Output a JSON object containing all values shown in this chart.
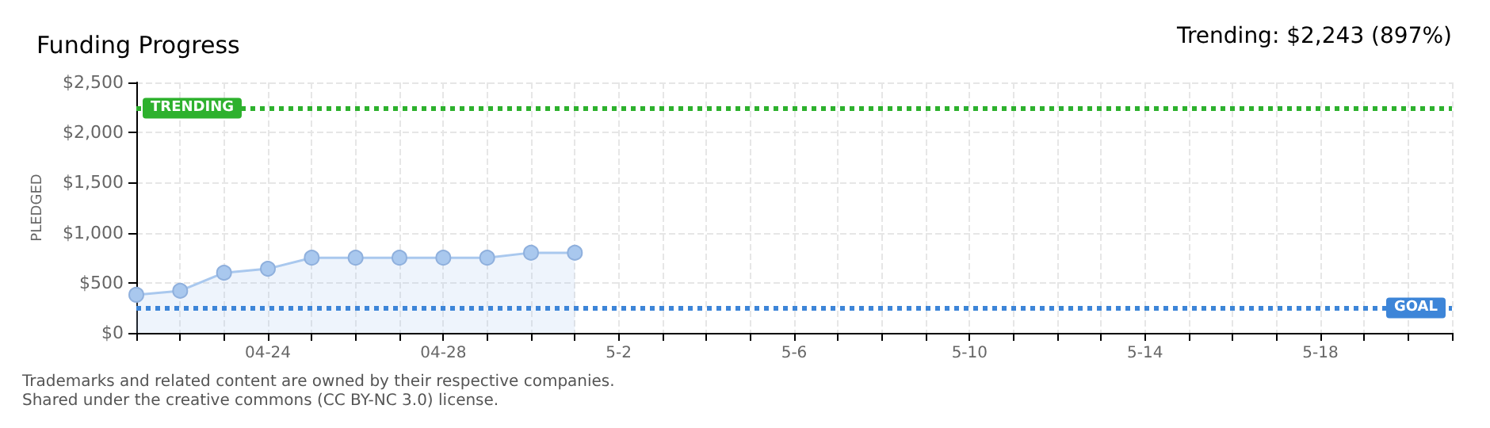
{
  "chart_data": {
    "type": "area",
    "title": "Funding Progress",
    "ylabel": "PLEDGED",
    "annotations": [
      "Trending: $2,243 (897%)",
      "Trademarks and related content are owned by their respective companies.",
      "Shared under the creative commons (CC BY-NC 3.0) license."
    ],
    "x": [
      "--04-21",
      "--04-22",
      "--04-23",
      "--04-24",
      "--04-25",
      "--04-26",
      "--04-27",
      "--04-28",
      "--04-29",
      "--04-30",
      "--05-01"
    ],
    "series": [
      {
        "color": "#a9c8ee",
        "values": [
          380,
          420,
          600,
          640,
          750,
          750,
          750,
          750,
          750,
          800,
          800
        ]
      }
    ],
    "xlim": [
      "--04-21",
      "--05-21"
    ],
    "xticks": [
      {
        "value": "--04-21",
        "label": null
      },
      {
        "value": "--04-22",
        "label": null
      },
      {
        "value": "--04-23",
        "label": null
      },
      {
        "value": "--04-24",
        "label": "04-24"
      },
      {
        "value": "--04-25",
        "label": null
      },
      {
        "value": "--04-26",
        "label": null
      },
      {
        "value": "--04-27",
        "label": null
      },
      {
        "value": "--04-28",
        "label": "04-28"
      },
      {
        "value": "--04-29",
        "label": null
      },
      {
        "value": "--04-30",
        "label": null
      },
      {
        "value": "--05-01",
        "label": null
      },
      {
        "value": "--05-02",
        "label": "5-2"
      },
      {
        "value": "--05-03",
        "label": null
      },
      {
        "value": "--05-04",
        "label": null
      },
      {
        "value": "--05-05",
        "label": null
      },
      {
        "value": "--05-06",
        "label": "5-6"
      },
      {
        "value": "--05-07",
        "label": null
      },
      {
        "value": "--05-08",
        "label": null
      },
      {
        "value": "--05-09",
        "label": null
      },
      {
        "value": "--05-10",
        "label": "5-10"
      },
      {
        "value": "--05-11",
        "label": null
      },
      {
        "value": "--05-12",
        "label": null
      },
      {
        "value": "--05-13",
        "label": null
      },
      {
        "value": "--05-14",
        "label": "5-14"
      },
      {
        "value": "--05-15",
        "label": null
      },
      {
        "value": "--05-16",
        "label": null
      },
      {
        "value": "--05-17",
        "label": null
      },
      {
        "value": "--05-18",
        "label": "5-18"
      },
      {
        "value": "--05-19",
        "label": null
      },
      {
        "value": "--05-20",
        "label": null
      },
      {
        "value": "--05-21",
        "label": null
      }
    ],
    "ylim": [
      0,
      2500
    ],
    "yticks": [
      {
        "value": 0,
        "label": "$0"
      },
      {
        "value": 500,
        "label": "$500"
      },
      {
        "value": 1000,
        "label": "$1,000"
      },
      {
        "value": 1500,
        "label": "$1,500"
      },
      {
        "value": 2000,
        "label": "$2,000"
      },
      {
        "value": 2500,
        "label": "$2,500"
      }
    ],
    "grid": true,
    "marker": "circle",
    "line_style": "solid",
    "ref_lines": [
      {
        "axis": "y",
        "value": 2243,
        "label": "TRENDING",
        "color": "#2db12d",
        "line_style": "dotted"
      },
      {
        "axis": "y",
        "value": 250,
        "label": "GOAL",
        "color": "#3d85d8",
        "line_style": "dotted"
      }
    ]
  }
}
